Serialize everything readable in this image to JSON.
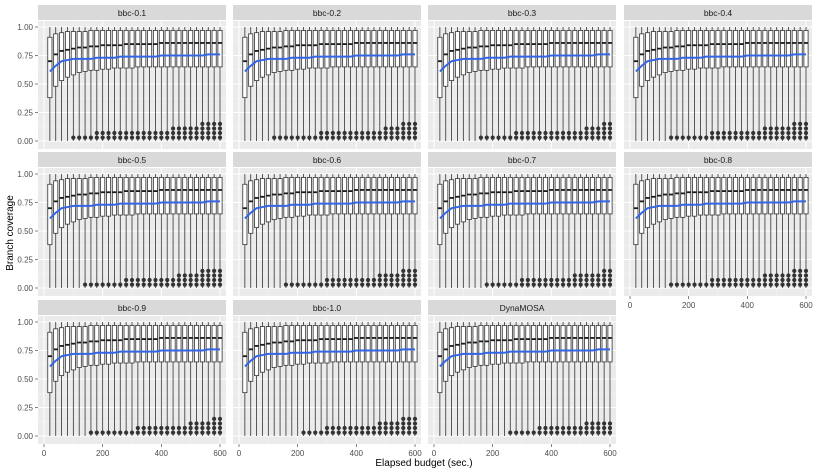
{
  "chart_data": {
    "type": "boxplot",
    "facet_layout": "4 columns x 3 rows",
    "xlabel": "Elapsed budget (sec.)",
    "ylabel": "Branch coverage",
    "xlim": [
      0,
      600
    ],
    "ylim": [
      0,
      1
    ],
    "x_ticks": [
      "0",
      "200",
      "400",
      "600"
    ],
    "y_ticks": [
      "0.00",
      "0.25",
      "0.50",
      "0.75",
      "1.00"
    ],
    "grid": true,
    "elapsed_budget": [
      20,
      40,
      60,
      80,
      100,
      120,
      140,
      160,
      180,
      200,
      220,
      240,
      260,
      280,
      300,
      320,
      340,
      360,
      380,
      400,
      420,
      440,
      460,
      480,
      500,
      520,
      540,
      560,
      580,
      600
    ],
    "box_stats_shared": {
      "median": [
        0.7,
        0.76,
        0.79,
        0.8,
        0.81,
        0.82,
        0.82,
        0.83,
        0.83,
        0.84,
        0.84,
        0.84,
        0.84,
        0.85,
        0.85,
        0.85,
        0.85,
        0.85,
        0.85,
        0.86,
        0.86,
        0.86,
        0.86,
        0.86,
        0.86,
        0.86,
        0.86,
        0.86,
        0.86,
        0.86
      ],
      "q1": [
        0.38,
        0.48,
        0.53,
        0.56,
        0.58,
        0.6,
        0.61,
        0.62,
        0.62,
        0.63,
        0.63,
        0.64,
        0.64,
        0.64,
        0.64,
        0.65,
        0.65,
        0.65,
        0.65,
        0.65,
        0.65,
        0.65,
        0.65,
        0.65,
        0.65,
        0.65,
        0.65,
        0.65,
        0.65,
        0.65
      ],
      "q3": [
        0.91,
        0.94,
        0.95,
        0.96,
        0.96,
        0.96,
        0.96,
        0.97,
        0.97,
        0.97,
        0.97,
        0.97,
        0.97,
        0.97,
        0.97,
        0.97,
        0.97,
        0.97,
        0.97,
        0.97,
        0.97,
        0.97,
        0.97,
        0.97,
        0.97,
        0.97,
        0.97,
        0.97,
        0.97,
        0.97
      ],
      "whisker_low": [
        0.0,
        0.0,
        0.0,
        0.0,
        0.0,
        0.0,
        0.0,
        0.0,
        0.0,
        0.0,
        0.0,
        0.0,
        0.0,
        0.0,
        0.0,
        0.0,
        0.0,
        0.0,
        0.0,
        0.0,
        0.0,
        0.0,
        0.0,
        0.0,
        0.0,
        0.0,
        0.0,
        0.0,
        0.0,
        0.0
      ],
      "whisker_high": [
        1.0,
        1.0,
        1.0,
        1.0,
        1.0,
        1.0,
        1.0,
        1.0,
        1.0,
        1.0,
        1.0,
        1.0,
        1.0,
        1.0,
        1.0,
        1.0,
        1.0,
        1.0,
        1.0,
        1.0,
        1.0,
        1.0,
        1.0,
        1.0,
        1.0,
        1.0,
        1.0,
        1.0,
        1.0,
        1.0
      ]
    },
    "mean_line_color": "#3366e6",
    "mean_line_shared": [
      0.61,
      0.66,
      0.7,
      0.71,
      0.72,
      0.72,
      0.72,
      0.72,
      0.73,
      0.73,
      0.73,
      0.73,
      0.74,
      0.74,
      0.74,
      0.74,
      0.74,
      0.74,
      0.74,
      0.75,
      0.75,
      0.75,
      0.75,
      0.75,
      0.75,
      0.75,
      0.75,
      0.76,
      0.76,
      0.76
    ],
    "outlier_levels": [
      0.03,
      0.07,
      0.11,
      0.15
    ],
    "panels": [
      {
        "label": "bbc-0.1",
        "outlier_counts": [
          0,
          0,
          0,
          0,
          1,
          1,
          1,
          1,
          2,
          2,
          2,
          2,
          2,
          2,
          2,
          2,
          2,
          2,
          2,
          2,
          2,
          3,
          3,
          3,
          3,
          3,
          4,
          4,
          4,
          4
        ]
      },
      {
        "label": "bbc-0.2",
        "outlier_counts": [
          0,
          0,
          0,
          0,
          0,
          1,
          1,
          1,
          1,
          1,
          1,
          1,
          1,
          2,
          2,
          2,
          2,
          2,
          2,
          2,
          2,
          2,
          2,
          2,
          3,
          3,
          3,
          4,
          4,
          4
        ]
      },
      {
        "label": "bbc-0.3",
        "outlier_counts": [
          0,
          0,
          0,
          0,
          0,
          0,
          0,
          1,
          1,
          1,
          1,
          1,
          1,
          2,
          2,
          2,
          2,
          2,
          2,
          2,
          2,
          2,
          2,
          2,
          2,
          3,
          3,
          3,
          4,
          4
        ]
      },
      {
        "label": "bbc-0.4",
        "outlier_counts": [
          0,
          0,
          0,
          0,
          0,
          0,
          1,
          1,
          1,
          1,
          1,
          1,
          1,
          2,
          2,
          2,
          2,
          2,
          2,
          2,
          2,
          2,
          3,
          3,
          3,
          3,
          3,
          4,
          4,
          4
        ]
      },
      {
        "label": "bbc-0.5",
        "outlier_counts": [
          0,
          0,
          0,
          0,
          0,
          0,
          1,
          1,
          1,
          1,
          1,
          1,
          1,
          2,
          2,
          2,
          2,
          2,
          2,
          2,
          2,
          2,
          3,
          3,
          3,
          3,
          4,
          4,
          4,
          4
        ]
      },
      {
        "label": "bbc-0.6",
        "outlier_counts": [
          0,
          0,
          0,
          0,
          0,
          0,
          0,
          1,
          1,
          1,
          1,
          1,
          1,
          1,
          2,
          2,
          2,
          2,
          2,
          2,
          2,
          2,
          2,
          3,
          3,
          3,
          3,
          4,
          4,
          4
        ]
      },
      {
        "label": "bbc-0.7",
        "outlier_counts": [
          0,
          0,
          0,
          0,
          0,
          0,
          0,
          0,
          1,
          1,
          1,
          1,
          1,
          1,
          2,
          2,
          2,
          2,
          2,
          2,
          2,
          2,
          2,
          3,
          3,
          3,
          3,
          3,
          4,
          4
        ]
      },
      {
        "label": "bbc-0.8",
        "outlier_counts": [
          0,
          0,
          0,
          0,
          0,
          0,
          1,
          1,
          1,
          1,
          1,
          1,
          1,
          2,
          2,
          2,
          2,
          2,
          2,
          2,
          2,
          2,
          3,
          3,
          3,
          3,
          3,
          4,
          4,
          4
        ]
      },
      {
        "label": "bbc-0.9",
        "outlier_counts": [
          0,
          0,
          0,
          0,
          0,
          0,
          0,
          1,
          1,
          1,
          1,
          1,
          1,
          1,
          1,
          2,
          2,
          2,
          2,
          2,
          2,
          2,
          2,
          2,
          3,
          3,
          3,
          3,
          4,
          4
        ]
      },
      {
        "label": "bbc-1.0",
        "outlier_counts": [
          0,
          0,
          0,
          0,
          0,
          0,
          0,
          0,
          0,
          0,
          1,
          1,
          1,
          1,
          2,
          2,
          2,
          2,
          2,
          2,
          2,
          2,
          2,
          3,
          3,
          3,
          3,
          4,
          4,
          4
        ]
      },
      {
        "label": "DynaMOSA",
        "outlier_counts": [
          0,
          0,
          0,
          0,
          0,
          0,
          0,
          0,
          0,
          0,
          0,
          0,
          1,
          1,
          1,
          1,
          1,
          2,
          2,
          2,
          2,
          2,
          2,
          2,
          2,
          3,
          3,
          3,
          3,
          3
        ]
      }
    ],
    "colors": {
      "panel_background": "#ebebeb",
      "grid_major": "#ffffff",
      "strip_background": "#d9d9d9",
      "box_stroke": "#333333",
      "outlier": "#333333"
    }
  }
}
